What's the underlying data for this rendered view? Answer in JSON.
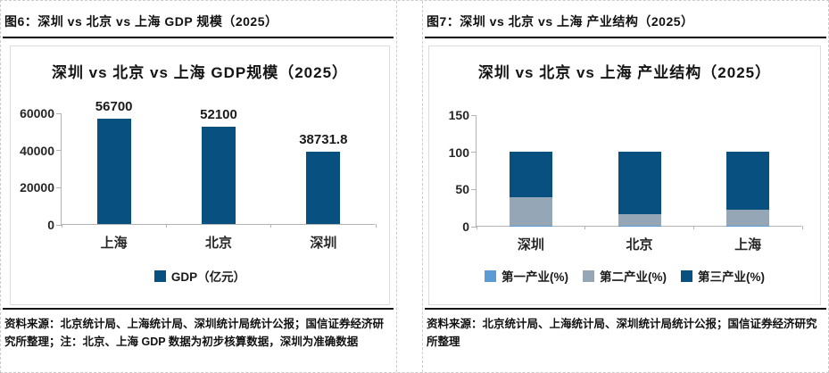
{
  "colors": {
    "dark_blue": "#07507F",
    "steel_gray": "#95A7B6",
    "light_blue": "#5C9CD6",
    "header_rule": "#000000",
    "cell_border_dashed": "#cccccc",
    "axis": "#b3b3b3"
  },
  "panels": {
    "left": {
      "header_title": "图6：深圳 vs 北京 vs 上海 GDP 规模（2025）",
      "footer": "资料来源：北京统计局、上海统计局、深圳统计局统计公报；国信证券经济研究所整理；注：北京、上海 GDP 数据为初步核算数据，深圳为准确数据"
    },
    "right": {
      "header_title": "图7：深圳 vs 北京 vs 上海 产业结构（2025）",
      "footer": "资料来源：北京统计局、上海统计局、深圳统计局统计公报；国信证券经济研究所整理"
    }
  },
  "chart_data": [
    {
      "type": "bar",
      "title": "深圳 vs 北京 vs 上海 GDP规模（2025）",
      "categories": [
        "上海",
        "北京",
        "深圳"
      ],
      "series": [
        {
          "name": "GDP（亿元）",
          "color": "#07507F",
          "values": [
            56700,
            52100,
            38731.8
          ]
        }
      ],
      "data_labels": [
        "56700",
        "52100",
        "38731.8"
      ],
      "xlabel": "",
      "ylabel": "",
      "ylim": [
        0,
        60000
      ],
      "yticks": [
        0,
        20000,
        40000,
        60000
      ],
      "grid": false,
      "legend_position": "bottom"
    },
    {
      "type": "stacked-bar",
      "title": "深圳 vs 北京 vs 上海 产业结构（2025）",
      "categories": [
        "深圳",
        "北京",
        "上海"
      ],
      "series": [
        {
          "name": "第一产业(%)",
          "color": "#5C9CD6",
          "values": [
            0.1,
            0.2,
            0.2
          ]
        },
        {
          "name": "第二产业(%)",
          "color": "#95A7B6",
          "values": [
            38,
            15.8,
            22
          ]
        },
        {
          "name": "第三产业(%)",
          "color": "#07507F",
          "values": [
            61.9,
            84,
            77.8
          ]
        }
      ],
      "xlabel": "",
      "ylabel": "",
      "ylim": [
        0,
        150
      ],
      "yticks": [
        0,
        50,
        100,
        150
      ],
      "grid": false,
      "legend_position": "bottom"
    }
  ]
}
